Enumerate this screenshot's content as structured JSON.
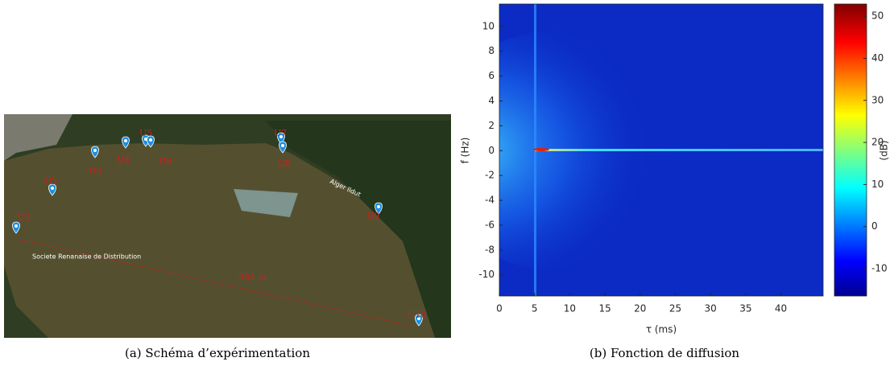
{
  "map": {
    "markers": [
      "U1",
      "U2",
      "U3",
      "U4",
      "U5",
      "U6",
      "U7",
      "U8",
      "U9",
      "U10"
    ],
    "distance": "364 m",
    "place": "Societe Renanaise de Distribution",
    "street": "Alger Ildut"
  },
  "chart_data": {
    "type": "heatmap",
    "xlabel": "τ (ms)",
    "ylabel": "f (Hz)",
    "xlim": [
      0,
      46
    ],
    "xticks": [
      0,
      5,
      10,
      15,
      20,
      25,
      30,
      35,
      40
    ],
    "ylim": [
      -11.7,
      11.8
    ],
    "yticks": [
      -10,
      -8,
      -6,
      -4,
      -2,
      0,
      2,
      4,
      6,
      8,
      10
    ],
    "colorbar": {
      "label": "(dB)",
      "lim": [
        -16.5,
        52.9
      ],
      "ticks": [
        -10,
        0,
        10,
        20,
        30,
        40,
        50
      ]
    }
  },
  "captions": [
    "(a) Schéma d’expérimentation",
    "(b) Fonction de diffusion"
  ]
}
